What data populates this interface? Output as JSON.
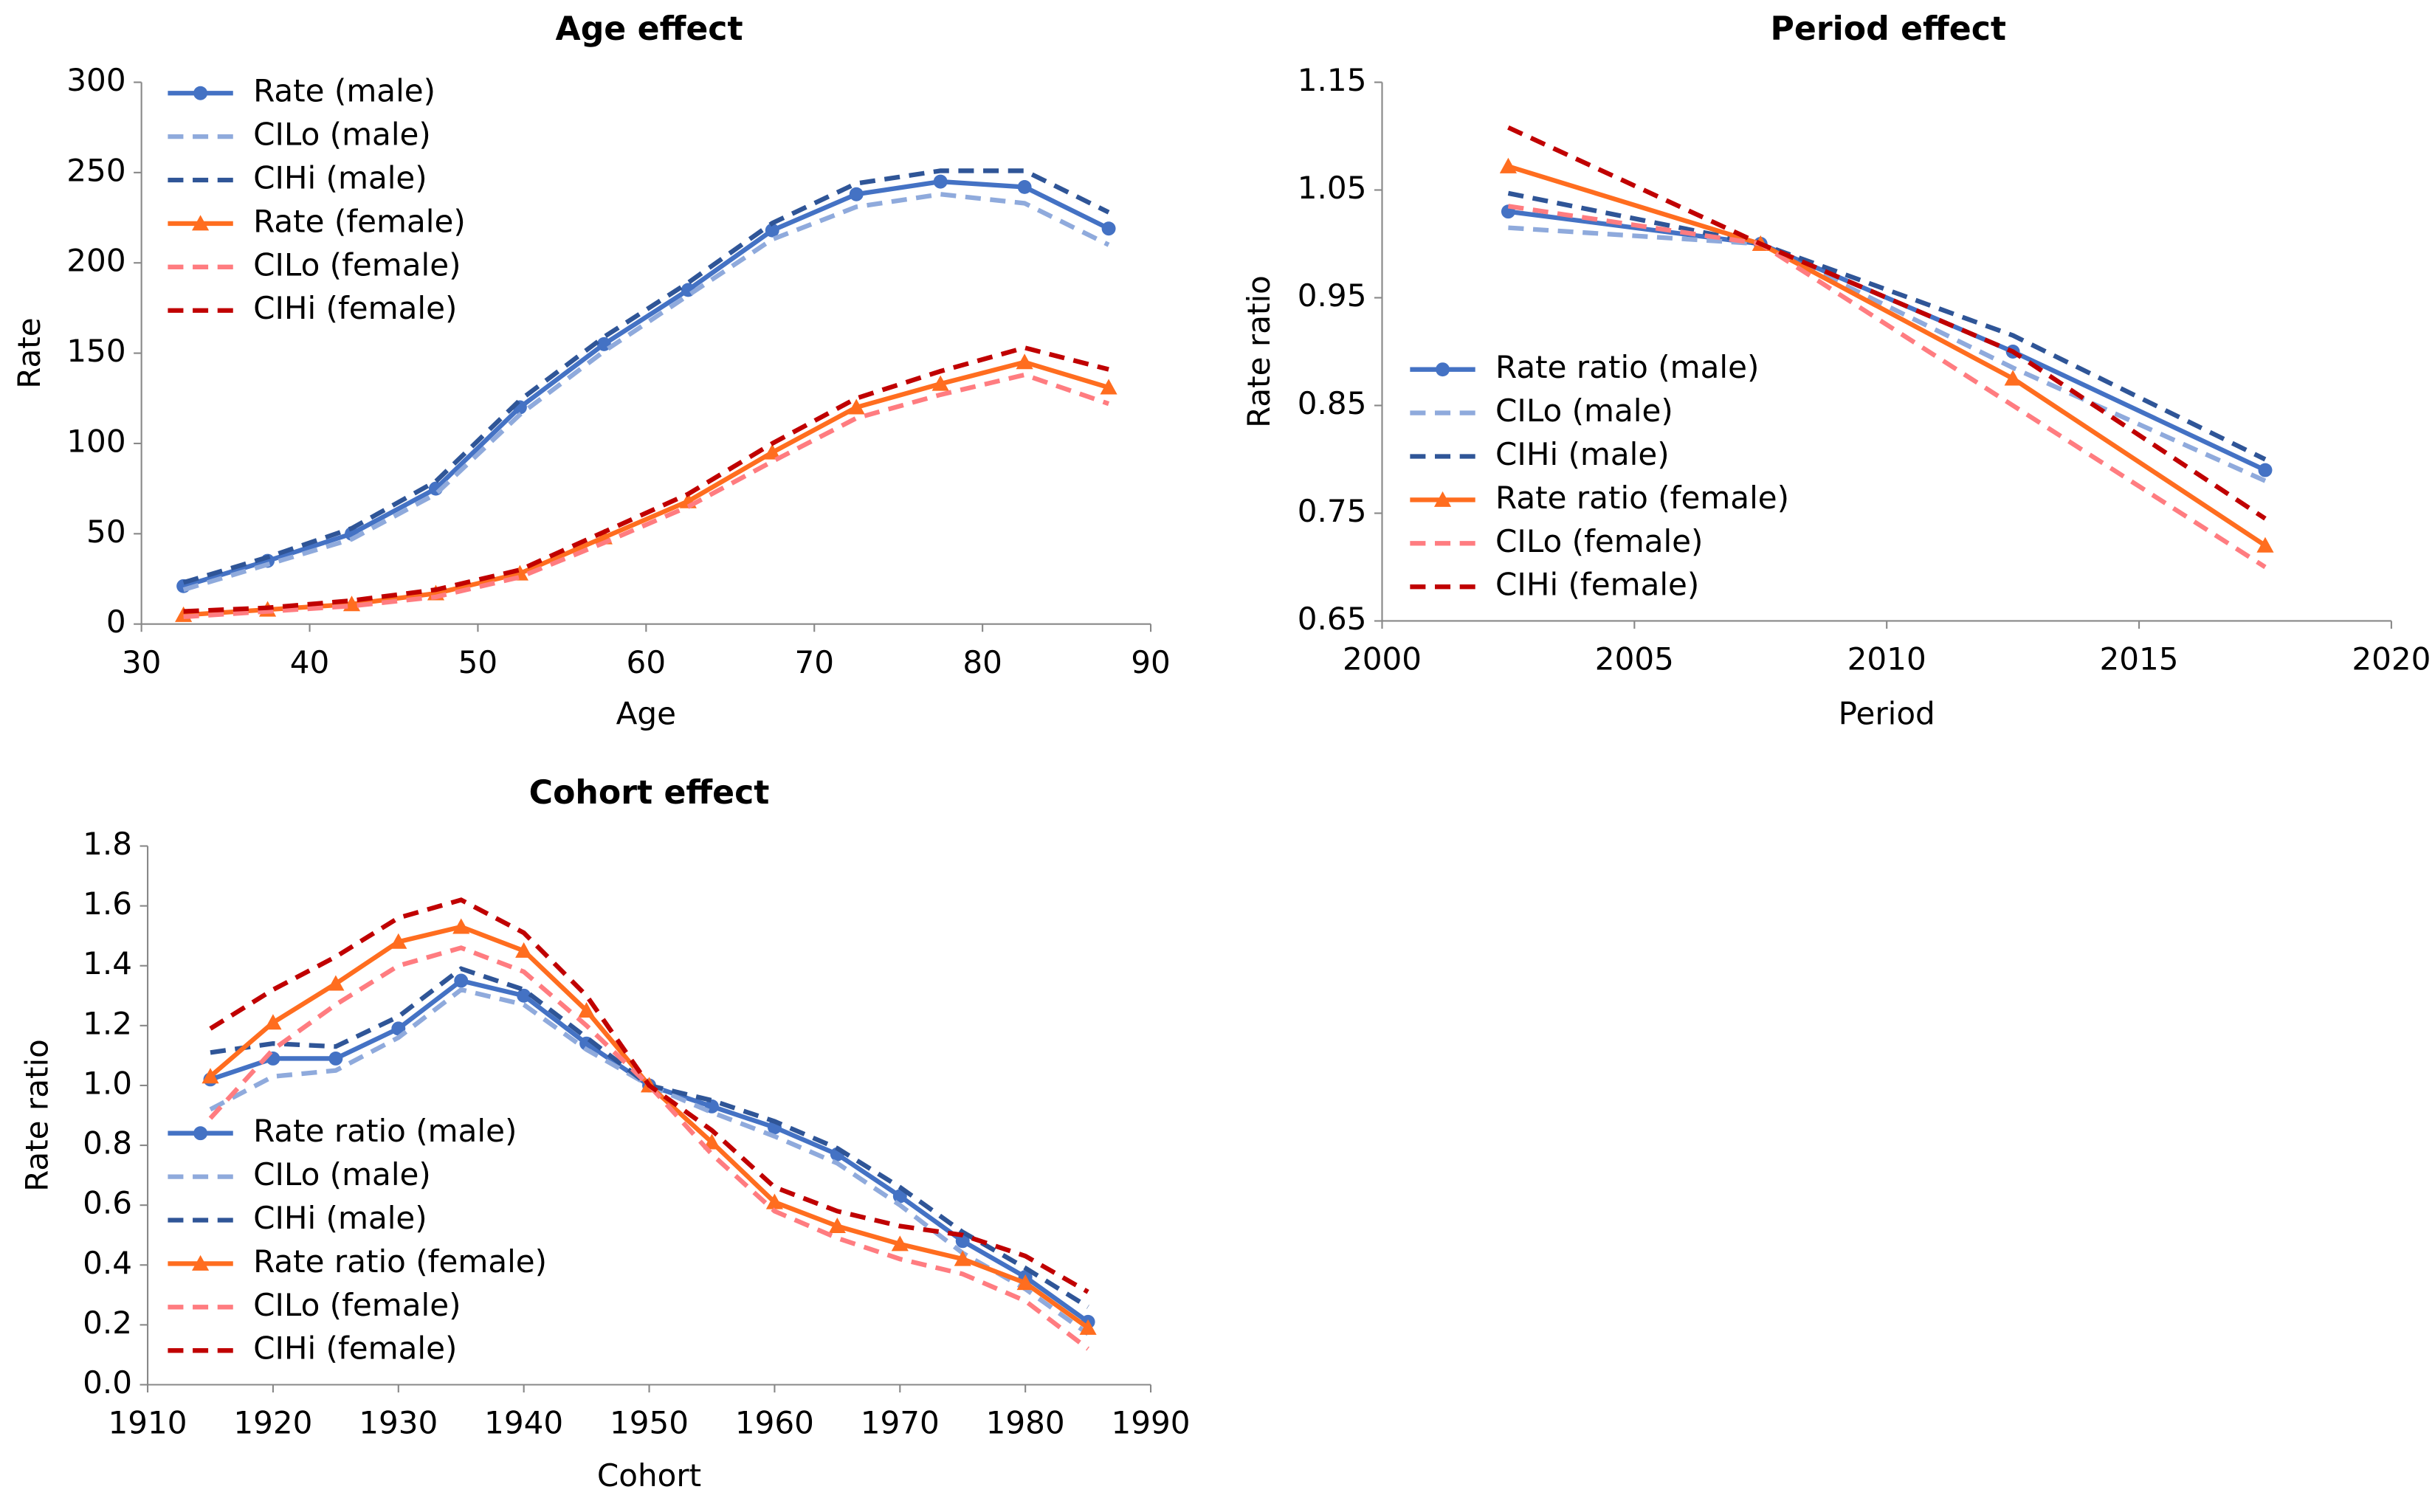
{
  "chart_data": [
    {
      "type": "line",
      "title": "Age effect",
      "x_label": "Age",
      "y_label": "Rate",
      "x": [
        32.5,
        37.5,
        42.5,
        47.5,
        52.5,
        57.5,
        62.5,
        67.5,
        72.5,
        77.5,
        82.5,
        87.5
      ],
      "xlim": [
        30,
        90
      ],
      "xticks": [
        30,
        40,
        50,
        60,
        70,
        80,
        90
      ],
      "ylim": [
        0,
        300
      ],
      "yticks": [
        0,
        50,
        100,
        150,
        200,
        250,
        300
      ],
      "series": [
        {
          "name": "Rate (male)",
          "color": "#4472c4",
          "dash": false,
          "marker": "circle",
          "values": [
            21,
            35,
            50,
            75,
            120,
            155,
            185,
            218,
            238,
            245,
            242,
            219
          ]
        },
        {
          "name": "CILo (male)",
          "color": "#8faadc",
          "dash": true,
          "values": [
            19,
            33,
            47,
            72,
            116,
            151,
            182,
            213,
            231,
            238,
            233,
            210
          ]
        },
        {
          "name": "CIHi (male)",
          "color": "#2f5597",
          "dash": true,
          "values": [
            23,
            37,
            53,
            79,
            124,
            159,
            189,
            222,
            244,
            251,
            251,
            228
          ]
        },
        {
          "name": "Rate (female)",
          "color": "#ff6d1f",
          "dash": false,
          "marker": "triangle",
          "values": [
            5,
            8,
            11,
            17,
            28,
            48,
            68,
            95,
            120,
            133,
            145,
            131
          ]
        },
        {
          "name": "CILo (female)",
          "color": "#ff7c80",
          "dash": true,
          "values": [
            4,
            7,
            10,
            15,
            26,
            45,
            65,
            90,
            114,
            127,
            138,
            122
          ]
        },
        {
          "name": "CIHi (female)",
          "color": "#c00000",
          "dash": true,
          "values": [
            7,
            9,
            13,
            19,
            30,
            51,
            72,
            100,
            125,
            140,
            153,
            141
          ]
        }
      ]
    },
    {
      "type": "line",
      "title": "Period effect",
      "x_label": "Period",
      "y_label": "Rate ratio",
      "x": [
        2002.5,
        2007.5,
        2012.5,
        2017.5
      ],
      "xlim": [
        2000,
        2020
      ],
      "xticks": [
        2000,
        2005,
        2010,
        2015,
        2020
      ],
      "ylim": [
        0.65,
        1.15
      ],
      "yticks": [
        0.65,
        0.75,
        0.85,
        0.95,
        1.05,
        1.15
      ],
      "series": [
        {
          "name": "Rate ratio (male)",
          "color": "#4472c4",
          "dash": false,
          "marker": "circle",
          "values": [
            1.03,
            1.0,
            0.9,
            0.79
          ]
        },
        {
          "name": "CILo (male)",
          "color": "#8faadc",
          "dash": true,
          "values": [
            1.015,
            1.0,
            0.885,
            0.78
          ]
        },
        {
          "name": "CIHi (male)",
          "color": "#2f5597",
          "dash": true,
          "values": [
            1.047,
            1.0,
            0.915,
            0.8
          ]
        },
        {
          "name": "Rate ratio (female)",
          "color": "#ff6d1f",
          "dash": false,
          "marker": "triangle",
          "values": [
            1.072,
            1.0,
            0.875,
            0.72
          ]
        },
        {
          "name": "CILo (female)",
          "color": "#ff7c80",
          "dash": true,
          "values": [
            1.035,
            1.0,
            0.85,
            0.7
          ]
        },
        {
          "name": "CIHi (female)",
          "color": "#c00000",
          "dash": true,
          "values": [
            1.108,
            1.0,
            0.9,
            0.745
          ]
        }
      ]
    },
    {
      "type": "line",
      "title": "Cohort effect",
      "x_label": "Cohort",
      "y_label": "Rate ratio",
      "x": [
        1915,
        1920,
        1925,
        1930,
        1935,
        1940,
        1945,
        1950,
        1955,
        1960,
        1965,
        1970,
        1975,
        1980,
        1985
      ],
      "xlim": [
        1910,
        1990
      ],
      "xticks": [
        1910,
        1920,
        1930,
        1940,
        1950,
        1960,
        1970,
        1980,
        1990
      ],
      "ylim": [
        0,
        1.8
      ],
      "yticks": [
        {
          "value": 0,
          "label": "0.0"
        },
        0.2,
        0.4,
        0.6,
        0.8,
        {
          "value": 1,
          "label": "1.0"
        },
        1.2,
        1.4,
        1.6,
        1.8
      ],
      "series": [
        {
          "name": "Rate ratio (male)",
          "color": "#4472c4",
          "dash": false,
          "marker": "circle",
          "values": [
            1.02,
            1.09,
            1.09,
            1.19,
            1.35,
            1.3,
            1.14,
            1.0,
            0.93,
            0.86,
            0.77,
            0.63,
            0.48,
            0.36,
            0.21
          ]
        },
        {
          "name": "CILo (male)",
          "color": "#8faadc",
          "dash": true,
          "values": [
            0.92,
            1.03,
            1.05,
            1.16,
            1.32,
            1.27,
            1.12,
            1.0,
            0.91,
            0.83,
            0.74,
            0.6,
            0.44,
            0.32,
            0.17
          ]
        },
        {
          "name": "CIHi (male)",
          "color": "#2f5597",
          "dash": true,
          "values": [
            1.11,
            1.14,
            1.13,
            1.23,
            1.39,
            1.32,
            1.16,
            1.0,
            0.95,
            0.88,
            0.79,
            0.66,
            0.51,
            0.39,
            0.26
          ]
        },
        {
          "name": "Rate ratio (female)",
          "color": "#ff6d1f",
          "dash": false,
          "marker": "triangle",
          "values": [
            1.03,
            1.21,
            1.34,
            1.48,
            1.53,
            1.45,
            1.25,
            1.0,
            0.81,
            0.61,
            0.53,
            0.47,
            0.42,
            0.34,
            0.19
          ]
        },
        {
          "name": "CILo (female)",
          "color": "#ff7c80",
          "dash": true,
          "values": [
            0.89,
            1.12,
            1.27,
            1.4,
            1.46,
            1.38,
            1.2,
            1.0,
            0.77,
            0.58,
            0.49,
            0.42,
            0.37,
            0.28,
            0.12
          ]
        },
        {
          "name": "CIHi (female)",
          "color": "#c00000",
          "dash": true,
          "values": [
            1.19,
            1.32,
            1.43,
            1.56,
            1.62,
            1.51,
            1.3,
            1.0,
            0.85,
            0.66,
            0.58,
            0.53,
            0.5,
            0.43,
            0.31
          ]
        }
      ]
    }
  ]
}
